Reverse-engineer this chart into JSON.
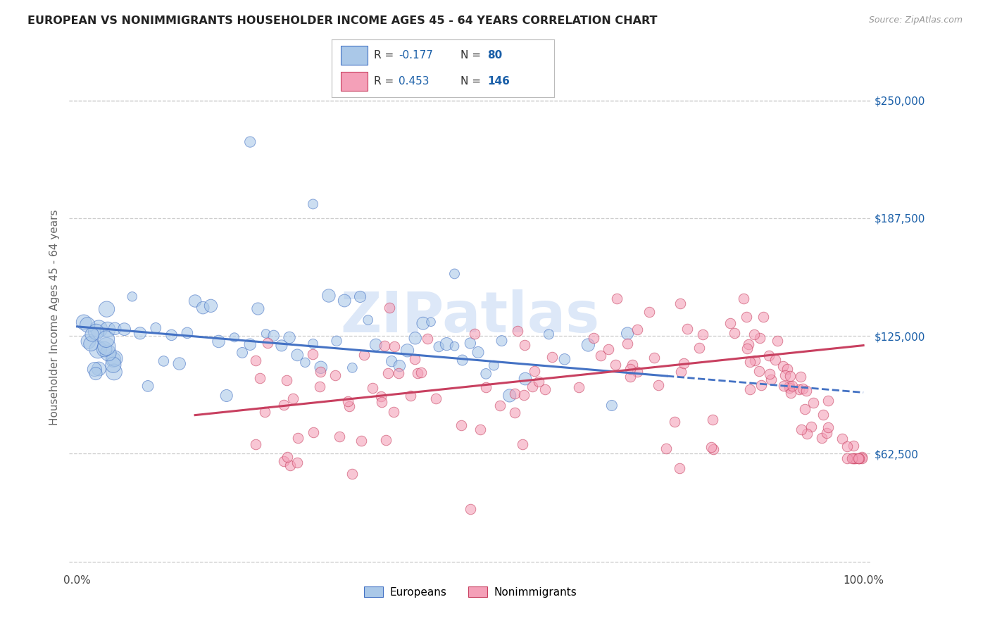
{
  "title": "EUROPEAN VS NONIMMIGRANTS HOUSEHOLDER INCOME AGES 45 - 64 YEARS CORRELATION CHART",
  "source": "Source: ZipAtlas.com",
  "ylabel": "Householder Income Ages 45 - 64 years",
  "r_european": -0.177,
  "n_european": 80,
  "r_nonimmigrant": 0.453,
  "n_nonimmigrant": 146,
  "european_color": "#aac8e8",
  "european_edge": "#4472c4",
  "nonimmigrant_color": "#f4a0b8",
  "nonimmigrant_edge": "#c84060",
  "line_european_color": "#4472c4",
  "line_nonimmigrant_color": "#c84060",
  "watermark": "ZIPatlas",
  "watermark_color": "#dde8f8",
  "legend_text_color": "#1a5fa8",
  "yticks": [
    62500,
    125000,
    187500,
    250000
  ],
  "ytick_labels": [
    "$62,500",
    "$125,000",
    "$187,500",
    "$250,000"
  ],
  "ymin": 0,
  "ymax": 270000,
  "xmin": -1,
  "xmax": 101,
  "eu_line_x0": 0,
  "eu_line_y0": 130000,
  "eu_line_x1": 100,
  "eu_line_y1": 95000,
  "eu_solid_end": 75,
  "ni_line_x0": 15,
  "ni_line_y0": 83000,
  "ni_line_x1": 100,
  "ni_line_y1": 120000
}
